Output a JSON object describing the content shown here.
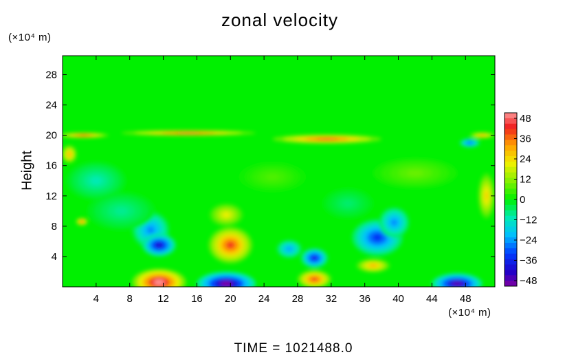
{
  "chart_data": {
    "type": "heatmap",
    "title": "zonal velocity",
    "xlabel": "",
    "ylabel": "Height",
    "x_unit": "(×10⁴ m)",
    "y_unit": "(×10⁴ m)",
    "xlim": [
      0,
      51.5
    ],
    "ylim": [
      0,
      30.5
    ],
    "x_ticks": [
      4,
      8,
      12,
      16,
      20,
      24,
      28,
      32,
      36,
      40,
      44,
      48
    ],
    "y_ticks": [
      4,
      8,
      12,
      16,
      20,
      24,
      28
    ],
    "colorbar": {
      "ticks": [
        48,
        36,
        24,
        12,
        0,
        -12,
        -24,
        -36,
        -48
      ],
      "range": [
        -48,
        48
      ]
    },
    "background_value": 0,
    "features": [
      {
        "x": 11.5,
        "y": 0.6,
        "rx": 3.2,
        "ry": 1.8,
        "value": 48
      },
      {
        "x": 19.5,
        "y": 0.4,
        "rx": 3.5,
        "ry": 1.6,
        "value": -48
      },
      {
        "x": 30.0,
        "y": 1.0,
        "rx": 2.0,
        "ry": 1.2,
        "value": 38
      },
      {
        "x": 47.0,
        "y": 0.4,
        "rx": 3.0,
        "ry": 1.4,
        "value": -45
      },
      {
        "x": 10.5,
        "y": 7.5,
        "rx": 2.2,
        "ry": 2.4,
        "value": -24
      },
      {
        "x": 11.5,
        "y": 5.5,
        "rx": 2.0,
        "ry": 1.5,
        "value": -40
      },
      {
        "x": 20.0,
        "y": 5.5,
        "rx": 2.6,
        "ry": 2.4,
        "value": 38
      },
      {
        "x": 19.5,
        "y": 9.5,
        "rx": 2.0,
        "ry": 1.5,
        "value": 20
      },
      {
        "x": 27.0,
        "y": 5.0,
        "rx": 1.5,
        "ry": 1.2,
        "value": -22
      },
      {
        "x": 30.0,
        "y": 3.8,
        "rx": 1.6,
        "ry": 1.3,
        "value": -36
      },
      {
        "x": 37.5,
        "y": 6.5,
        "rx": 3.0,
        "ry": 2.4,
        "value": -32
      },
      {
        "x": 39.5,
        "y": 8.5,
        "rx": 1.8,
        "ry": 2.0,
        "value": -24
      },
      {
        "x": 37.0,
        "y": 2.8,
        "rx": 2.0,
        "ry": 0.9,
        "value": 28
      },
      {
        "x": 31.5,
        "y": 19.5,
        "rx": 6.5,
        "ry": 0.6,
        "value": 38
      },
      {
        "x": 15.0,
        "y": 20.3,
        "rx": 8.0,
        "ry": 0.35,
        "value": 40
      },
      {
        "x": 2.5,
        "y": 20.0,
        "rx": 3.0,
        "ry": 0.35,
        "value": 38
      },
      {
        "x": 50.0,
        "y": 20.0,
        "rx": 1.5,
        "ry": 0.4,
        "value": 30
      },
      {
        "x": 0.8,
        "y": 17.5,
        "rx": 0.9,
        "ry": 1.2,
        "value": 28
      },
      {
        "x": 2.3,
        "y": 8.6,
        "rx": 0.7,
        "ry": 0.5,
        "value": 36
      },
      {
        "x": 48.5,
        "y": 19.0,
        "rx": 1.2,
        "ry": 0.6,
        "value": -28
      },
      {
        "x": 50.5,
        "y": 12.0,
        "rx": 1.0,
        "ry": 3.0,
        "value": 24
      },
      {
        "x": 7.0,
        "y": 10.0,
        "rx": 4.0,
        "ry": 2.5,
        "value": -8
      },
      {
        "x": 25.0,
        "y": 14.5,
        "rx": 4.0,
        "ry": 2.0,
        "value": 6
      },
      {
        "x": 42.0,
        "y": 15.0,
        "rx": 5.0,
        "ry": 2.0,
        "value": 8
      },
      {
        "x": 4.0,
        "y": 14.0,
        "rx": 3.5,
        "ry": 2.5,
        "value": -10
      },
      {
        "x": 34.0,
        "y": 11.0,
        "rx": 3.0,
        "ry": 2.0,
        "value": -6
      }
    ]
  },
  "footer": {
    "time_text": "TIME  =  1021488.0"
  }
}
